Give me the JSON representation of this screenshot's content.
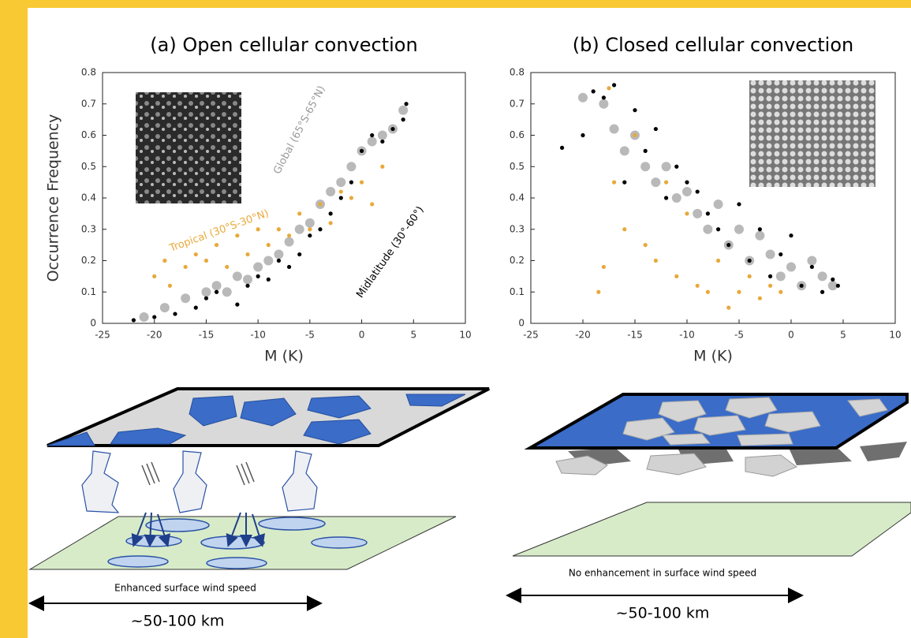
{
  "chart_data": [
    {
      "type": "scatter",
      "title": "(a) Open cellular convection",
      "xlabel": "M (K)",
      "ylabel": "Occurrence Frequency",
      "xlim": [
        -25,
        10
      ],
      "ylim": [
        0,
        0.8
      ],
      "xticks": [
        -25,
        -20,
        -15,
        -10,
        -5,
        0,
        5,
        10
      ],
      "yticks": [
        0,
        0.1,
        0.2,
        0.3,
        0.4,
        0.5,
        0.6,
        0.7,
        0.8
      ],
      "series": [
        {
          "name": "Global (65°S-65°N)",
          "color": "#b9b9b9",
          "x": [
            -21,
            -19,
            -17,
            -15,
            -14,
            -13,
            -12,
            -11,
            -10,
            -9,
            -8,
            -7,
            -6,
            -5,
            -4,
            -3,
            -2,
            -1,
            0,
            1,
            2,
            3,
            4
          ],
          "values": [
            0.02,
            0.05,
            0.08,
            0.1,
            0.12,
            0.1,
            0.15,
            0.14,
            0.18,
            0.2,
            0.22,
            0.26,
            0.3,
            0.32,
            0.38,
            0.42,
            0.45,
            0.5,
            0.55,
            0.58,
            0.6,
            0.62,
            0.68
          ]
        },
        {
          "name": "Tropical (30°S-30°N)",
          "color": "#e8a93a",
          "x": [
            -20,
            -19,
            -18.5,
            -17,
            -16,
            -15,
            -14,
            -13,
            -12,
            -11,
            -10,
            -9,
            -8,
            -7,
            -6,
            -5,
            -4,
            -3,
            -2,
            -1,
            0,
            1,
            2
          ],
          "values": [
            0.15,
            0.2,
            0.12,
            0.18,
            0.22,
            0.2,
            0.25,
            0.18,
            0.28,
            0.22,
            0.3,
            0.25,
            0.3,
            0.28,
            0.35,
            0.3,
            0.38,
            0.32,
            0.42,
            0.4,
            0.45,
            0.38,
            0.5
          ]
        },
        {
          "name": "Midlatitude (30°-60°)",
          "color": "#000000",
          "x": [
            -22,
            -20,
            -18,
            -16,
            -15,
            -14,
            -12,
            -11,
            -10,
            -9,
            -8,
            -7,
            -6,
            -5,
            -4,
            -3,
            -2,
            -1,
            0,
            1,
            2,
            3,
            4,
            4.3
          ],
          "values": [
            0.01,
            0.02,
            0.03,
            0.05,
            0.08,
            0.1,
            0.06,
            0.12,
            0.15,
            0.14,
            0.2,
            0.18,
            0.22,
            0.28,
            0.3,
            0.35,
            0.4,
            0.45,
            0.55,
            0.6,
            0.58,
            0.62,
            0.65,
            0.7
          ]
        }
      ]
    },
    {
      "type": "scatter",
      "title": "(b) Closed cellular convection",
      "xlabel": "M (K)",
      "xlim": [
        -25,
        10
      ],
      "ylim": [
        0,
        0.8
      ],
      "xticks": [
        -25,
        -20,
        -15,
        -10,
        -5,
        0,
        5,
        10
      ],
      "yticks": [
        0,
        0.1,
        0.2,
        0.3,
        0.4,
        0.5,
        0.6,
        0.7,
        0.8
      ],
      "series": [
        {
          "color": "#b9b9b9",
          "x": [
            -20,
            -18,
            -17,
            -16,
            -15,
            -14,
            -13,
            -12,
            -11,
            -10,
            -9,
            -8,
            -7,
            -6,
            -5,
            -4,
            -3,
            -2,
            -1,
            0,
            1,
            2,
            3,
            4
          ],
          "values": [
            0.72,
            0.7,
            0.62,
            0.55,
            0.6,
            0.5,
            0.45,
            0.5,
            0.4,
            0.42,
            0.35,
            0.3,
            0.38,
            0.25,
            0.3,
            0.2,
            0.28,
            0.22,
            0.15,
            0.18,
            0.12,
            0.2,
            0.15,
            0.12
          ]
        },
        {
          "color": "#e8a93a",
          "x": [
            -18.5,
            -18,
            -17.5,
            -17,
            -16,
            -15,
            -14,
            -13,
            -12,
            -11,
            -10,
            -9,
            -8,
            -7,
            -6,
            -5,
            -4,
            -3,
            -2,
            -1
          ],
          "values": [
            0.1,
            0.18,
            0.75,
            0.45,
            0.3,
            0.6,
            0.25,
            0.2,
            0.45,
            0.15,
            0.35,
            0.12,
            0.1,
            0.2,
            0.05,
            0.1,
            0.15,
            0.08,
            0.12,
            0.1
          ]
        },
        {
          "color": "#000000",
          "x": [
            -22,
            -20,
            -19,
            -18,
            -17,
            -16,
            -15,
            -14,
            -13,
            -12,
            -11,
            -10,
            -9,
            -8,
            -7,
            -6,
            -5,
            -4,
            -3,
            -2,
            -1,
            0,
            1,
            2,
            3,
            4,
            4.5
          ],
          "values": [
            0.56,
            0.6,
            0.74,
            0.72,
            0.76,
            0.45,
            0.68,
            0.55,
            0.62,
            0.4,
            0.5,
            0.45,
            0.42,
            0.35,
            0.3,
            0.25,
            0.38,
            0.2,
            0.3,
            0.15,
            0.22,
            0.28,
            0.12,
            0.18,
            0.1,
            0.14,
            0.12
          ]
        }
      ]
    }
  ],
  "diagrams": {
    "left": {
      "caption": "Enhanced surface wind speed",
      "scale": "~50-100 km"
    },
    "right": {
      "caption": "No enhancement in surface wind speed",
      "scale": "~50-100 km"
    }
  }
}
